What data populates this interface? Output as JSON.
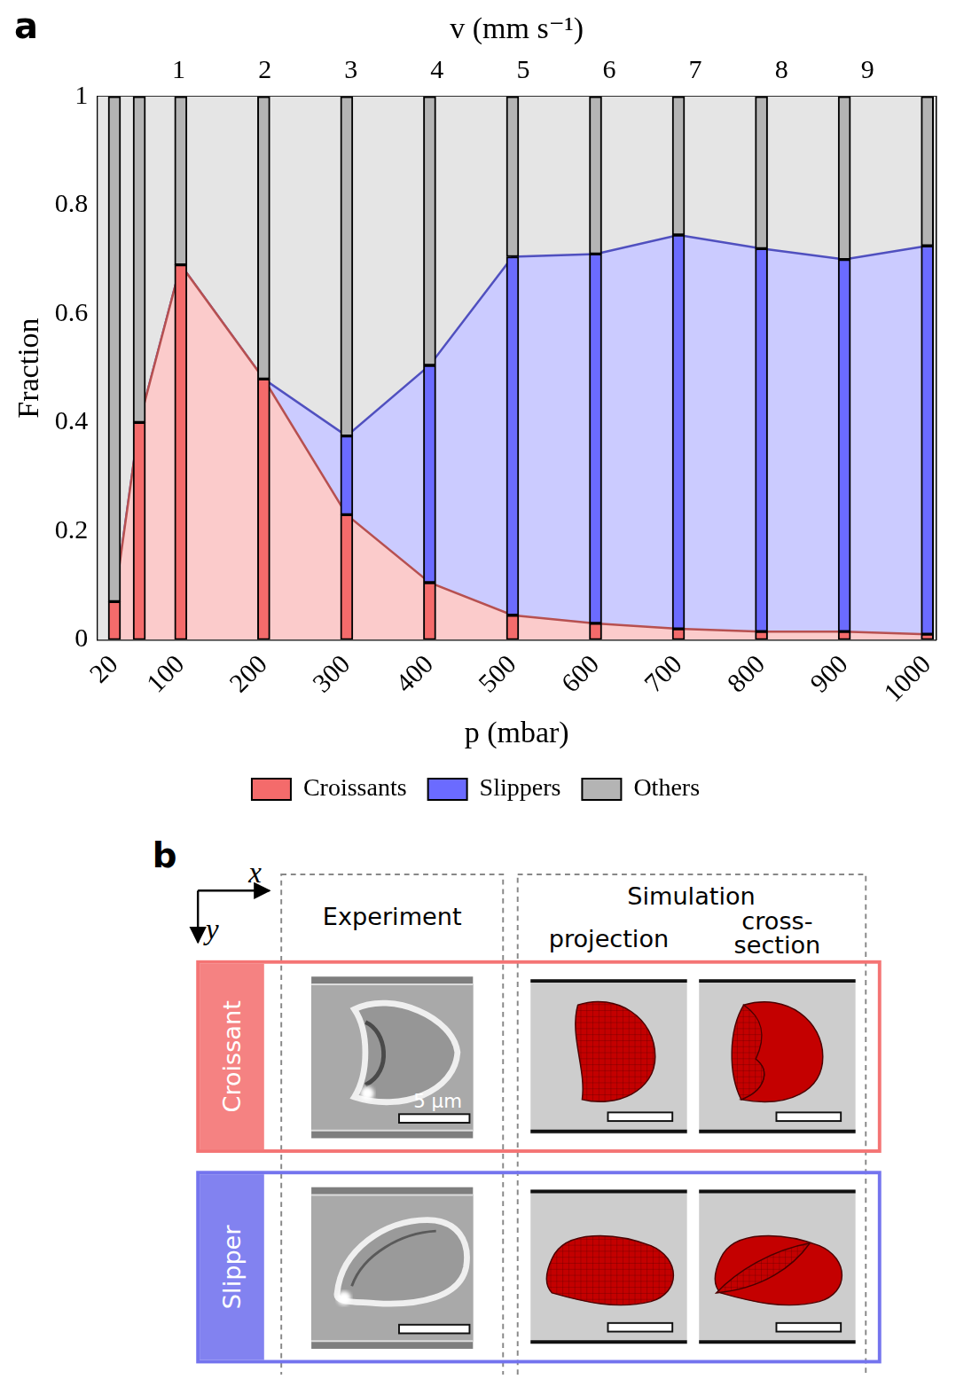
{
  "chart_data": {
    "type": "bar",
    "panel": "a",
    "x_label": "p (mbar)",
    "y_label": "Fraction",
    "x2_label": "v (mm s⁻¹)",
    "x": [
      20,
      50,
      100,
      200,
      300,
      400,
      500,
      600,
      700,
      800,
      900,
      1000
    ],
    "series": [
      {
        "name": "Croissants",
        "color": "#f46b6b",
        "values": [
          0.07,
          0.4,
          0.69,
          0.48,
          0.23,
          0.105,
          0.045,
          0.03,
          0.02,
          0.015,
          0.015,
          0.01
        ]
      },
      {
        "name": "Slippers",
        "color": "#6b6bff",
        "values": [
          0,
          0,
          0,
          0,
          0.145,
          0.4,
          0.66,
          0.68,
          0.725,
          0.705,
          0.685,
          0.715
        ]
      },
      {
        "name": "Others",
        "color": "#b4b4b4",
        "values": [
          0.93,
          0.6,
          0.31,
          0.52,
          0.625,
          0.495,
          0.295,
          0.29,
          0.255,
          0.28,
          0.3,
          0.275
        ]
      }
    ],
    "stacked": true,
    "xlim": [
      0,
      1010
    ],
    "xticks": [
      20,
      100,
      200,
      300,
      400,
      500,
      600,
      700,
      800,
      900,
      1000
    ],
    "x2lim": [
      0.06,
      9.79
    ],
    "x2ticks": [
      1,
      2,
      3,
      4,
      5,
      6,
      7,
      8,
      9
    ],
    "ylim": [
      0,
      1
    ],
    "yticks": [
      0,
      0.2,
      0.4,
      0.6,
      0.8,
      1
    ],
    "grid": false,
    "legend": "bottom"
  },
  "diagram": {
    "panel": "b",
    "axes": [
      "x",
      "y"
    ],
    "experiment": "Experiment",
    "simulation": {
      "title": "Simulation",
      "views": [
        "projection",
        "cross-section"
      ]
    },
    "rows": [
      {
        "label": "Croissant",
        "color": "#f47474"
      },
      {
        "label": "Slipper",
        "color": "#7474ee"
      }
    ],
    "scale_bar": "5 µm"
  }
}
